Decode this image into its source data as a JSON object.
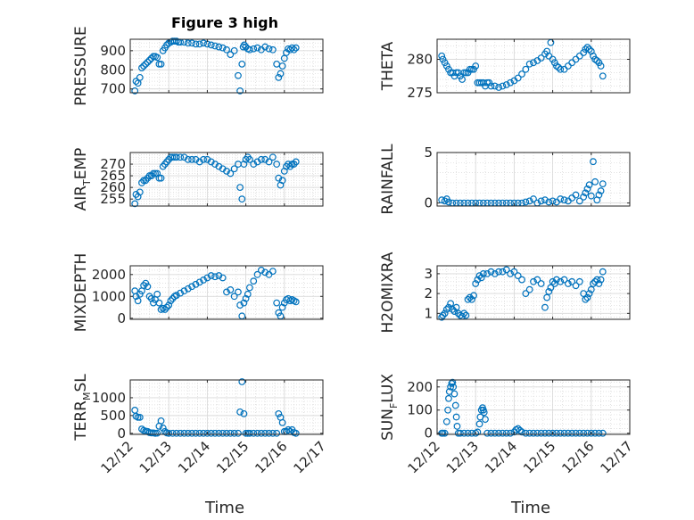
{
  "title": "Figure 3 high",
  "marker_color": "#0072BD",
  "x_tick_labels": [
    "12/12",
    "12/13",
    "12/14",
    "12/15",
    "12/16",
    "12/17"
  ],
  "x_label": "Time",
  "chart_data": [
    {
      "type": "scatter",
      "ylabel_base": "PRESSURE",
      "ylabel_sub": "",
      "ylabel_tail": "",
      "xlim": [
        0,
        5
      ],
      "ylim": [
        680,
        960
      ],
      "yticks": [
        700,
        800,
        900
      ],
      "x": [
        0.12,
        0.15,
        0.2,
        0.25,
        0.3,
        0.35,
        0.4,
        0.45,
        0.5,
        0.55,
        0.6,
        0.65,
        0.7,
        0.75,
        0.8,
        0.85,
        0.9,
        0.95,
        1.0,
        1.05,
        1.1,
        1.15,
        1.2,
        1.25,
        1.3,
        1.4,
        1.5,
        1.6,
        1.7,
        1.8,
        1.9,
        2.0,
        2.1,
        2.2,
        2.3,
        2.4,
        2.5,
        2.6,
        2.7,
        2.8,
        2.85,
        2.9,
        2.93,
        2.96,
        3.0,
        3.05,
        3.1,
        3.2,
        3.3,
        3.4,
        3.5,
        3.6,
        3.7,
        3.8,
        3.85,
        3.9,
        3.95,
        4.0,
        4.05,
        4.1,
        4.15,
        4.2,
        4.25,
        4.3
      ],
      "y": [
        690,
        740,
        730,
        760,
        810,
        820,
        830,
        840,
        850,
        860,
        870,
        870,
        865,
        830,
        830,
        900,
        915,
        930,
        940,
        945,
        950,
        950,
        950,
        945,
        945,
        945,
        940,
        940,
        935,
        935,
        940,
        935,
        930,
        925,
        920,
        915,
        905,
        880,
        900,
        770,
        690,
        830,
        920,
        930,
        920,
        910,
        905,
        910,
        915,
        905,
        920,
        910,
        905,
        830,
        760,
        780,
        820,
        860,
        890,
        910,
        905,
        915,
        905,
        915
      ]
    },
    {
      "type": "scatter",
      "ylabel_base": "THETA",
      "ylabel_sub": "",
      "ylabel_tail": "",
      "xlim": [
        0,
        5
      ],
      "ylim": [
        275,
        283
      ],
      "yticks": [
        275,
        280
      ],
      "x": [
        0.12,
        0.15,
        0.2,
        0.25,
        0.3,
        0.35,
        0.4,
        0.45,
        0.5,
        0.55,
        0.6,
        0.65,
        0.7,
        0.75,
        0.8,
        0.85,
        0.9,
        0.95,
        1.0,
        1.05,
        1.1,
        1.15,
        1.2,
        1.25,
        1.3,
        1.35,
        1.4,
        1.5,
        1.6,
        1.7,
        1.8,
        1.9,
        2.0,
        2.1,
        2.2,
        2.3,
        2.4,
        2.5,
        2.6,
        2.7,
        2.8,
        2.85,
        2.9,
        2.95,
        3.0,
        3.05,
        3.1,
        3.15,
        3.2,
        3.3,
        3.4,
        3.5,
        3.6,
        3.7,
        3.8,
        3.85,
        3.9,
        3.95,
        4.0,
        4.05,
        4.1,
        4.15,
        4.2,
        4.25,
        4.3
      ],
      "y": [
        280.5,
        280,
        279.5,
        279,
        278.5,
        278,
        278,
        277.5,
        278,
        278,
        277.5,
        277,
        278,
        278,
        278,
        278.5,
        278.5,
        278.5,
        279,
        276.5,
        276.5,
        276.5,
        276.5,
        276,
        276.5,
        276.5,
        276,
        276,
        275.8,
        276,
        276.2,
        276.5,
        276.8,
        277.2,
        277.8,
        278.5,
        279.3,
        279.5,
        279.8,
        280.2,
        280.8,
        281.2,
        280.5,
        282.5,
        280,
        279.5,
        279,
        278.8,
        278.5,
        278.5,
        279,
        279.5,
        280,
        280.5,
        281,
        281.5,
        281.8,
        281.5,
        281.2,
        280.5,
        280,
        279.8,
        279.5,
        279,
        277.5
      ]
    },
    {
      "type": "scatter",
      "ylabel_base": "AIR",
      "ylabel_sub": "T",
      "ylabel_tail": "EMP",
      "xlim": [
        0,
        5
      ],
      "ylim": [
        252,
        275
      ],
      "yticks": [
        255,
        260,
        265,
        270
      ],
      "x": [
        0.12,
        0.15,
        0.2,
        0.25,
        0.3,
        0.35,
        0.4,
        0.45,
        0.5,
        0.55,
        0.6,
        0.65,
        0.7,
        0.75,
        0.8,
        0.85,
        0.9,
        0.95,
        1.0,
        1.05,
        1.1,
        1.15,
        1.2,
        1.3,
        1.4,
        1.5,
        1.6,
        1.7,
        1.8,
        1.9,
        2.0,
        2.1,
        2.2,
        2.3,
        2.4,
        2.5,
        2.6,
        2.7,
        2.8,
        2.85,
        2.9,
        2.95,
        3.0,
        3.05,
        3.1,
        3.2,
        3.3,
        3.4,
        3.5,
        3.6,
        3.7,
        3.8,
        3.85,
        3.9,
        3.95,
        4.0,
        4.05,
        4.1,
        4.15,
        4.2,
        4.25,
        4.3
      ],
      "y": [
        253,
        257,
        256,
        258,
        262,
        263,
        263,
        264,
        265,
        265,
        266,
        266,
        266,
        264,
        264,
        269,
        270,
        271,
        272,
        273,
        273,
        273,
        273,
        273,
        273,
        272,
        272,
        272,
        271,
        272,
        272,
        271,
        270,
        269,
        268,
        267,
        266,
        268,
        270,
        260,
        255,
        270,
        272,
        273,
        272,
        270,
        271,
        272,
        272,
        271,
        273,
        270,
        264,
        261,
        263,
        267,
        269,
        270,
        269,
        270,
        270,
        271
      ]
    },
    {
      "type": "scatter",
      "ylabel_base": "RAINFALL",
      "ylabel_sub": "",
      "ylabel_tail": "",
      "xlim": [
        0,
        5
      ],
      "ylim": [
        -0.3,
        5
      ],
      "yticks": [
        0,
        5
      ],
      "x": [
        0.12,
        0.2,
        0.25,
        0.3,
        0.4,
        0.5,
        0.6,
        0.7,
        0.8,
        0.9,
        1.0,
        1.1,
        1.2,
        1.3,
        1.4,
        1.5,
        1.6,
        1.7,
        1.8,
        1.9,
        2.0,
        2.1,
        2.2,
        2.3,
        2.4,
        2.5,
        2.6,
        2.7,
        2.8,
        2.9,
        3.0,
        3.1,
        3.2,
        3.3,
        3.4,
        3.5,
        3.6,
        3.7,
        3.8,
        3.85,
        3.9,
        3.95,
        4.0,
        4.05,
        4.1,
        4.15,
        4.2,
        4.25,
        4.3
      ],
      "y": [
        0.3,
        0.2,
        0.4,
        0.1,
        0,
        0,
        0,
        0,
        0,
        0,
        0,
        0,
        0,
        0,
        0,
        0,
        0,
        0,
        0,
        0,
        0,
        0,
        0,
        0.1,
        0.2,
        0.4,
        0,
        0.2,
        0.3,
        0.1,
        0.2,
        0.1,
        0.4,
        0.3,
        0.2,
        0.5,
        0.8,
        0.2,
        0.6,
        1.0,
        1.4,
        1.8,
        0.7,
        4.1,
        2.1,
        0.3,
        0.8,
        1.2,
        1.9
      ]
    },
    {
      "type": "scatter",
      "ylabel_base": "MIXDEPTH",
      "ylabel_sub": "",
      "ylabel_tail": "",
      "xlim": [
        0,
        5
      ],
      "ylim": [
        -50,
        2400
      ],
      "yticks": [
        0,
        1000,
        2000
      ],
      "x": [
        0.12,
        0.15,
        0.2,
        0.25,
        0.3,
        0.35,
        0.4,
        0.45,
        0.5,
        0.55,
        0.6,
        0.65,
        0.7,
        0.75,
        0.8,
        0.85,
        0.9,
        0.95,
        1.0,
        1.05,
        1.1,
        1.15,
        1.2,
        1.3,
        1.4,
        1.5,
        1.6,
        1.7,
        1.8,
        1.9,
        2.0,
        2.1,
        2.2,
        2.3,
        2.4,
        2.5,
        2.6,
        2.7,
        2.8,
        2.85,
        2.9,
        2.95,
        3.0,
        3.05,
        3.1,
        3.2,
        3.3,
        3.4,
        3.5,
        3.6,
        3.7,
        3.8,
        3.85,
        3.9,
        3.95,
        4.0,
        4.05,
        4.1,
        4.15,
        4.2,
        4.25,
        4.3
      ],
      "y": [
        1250,
        1000,
        800,
        1100,
        1250,
        1500,
        1600,
        1450,
        1000,
        900,
        700,
        850,
        1100,
        700,
        400,
        450,
        400,
        500,
        600,
        800,
        900,
        1000,
        1050,
        1150,
        1250,
        1350,
        1450,
        1550,
        1650,
        1750,
        1850,
        1950,
        1900,
        1950,
        1850,
        1200,
        1300,
        1000,
        1200,
        600,
        100,
        700,
        900,
        1100,
        1400,
        1700,
        2000,
        2200,
        2100,
        2000,
        2150,
        700,
        250,
        100,
        500,
        700,
        850,
        900,
        800,
        850,
        800,
        750
      ]
    },
    {
      "type": "scatter",
      "ylabel_base": "H2OMIXRA",
      "ylabel_sub": "",
      "ylabel_tail": "",
      "xlim": [
        0,
        5
      ],
      "ylim": [
        0.7,
        3.4
      ],
      "yticks": [
        1,
        2,
        3
      ],
      "x": [
        0.12,
        0.15,
        0.2,
        0.25,
        0.3,
        0.35,
        0.4,
        0.45,
        0.5,
        0.55,
        0.6,
        0.65,
        0.7,
        0.75,
        0.8,
        0.85,
        0.9,
        0.95,
        1.0,
        1.05,
        1.1,
        1.15,
        1.2,
        1.3,
        1.4,
        1.5,
        1.6,
        1.7,
        1.8,
        1.9,
        2.0,
        2.1,
        2.2,
        2.3,
        2.4,
        2.5,
        2.6,
        2.7,
        2.8,
        2.85,
        2.9,
        2.95,
        3.0,
        3.05,
        3.1,
        3.2,
        3.3,
        3.4,
        3.5,
        3.6,
        3.7,
        3.8,
        3.85,
        3.9,
        3.95,
        4.0,
        4.05,
        4.1,
        4.15,
        4.2,
        4.25,
        4.3
      ],
      "y": [
        0.8,
        0.9,
        1.0,
        1.2,
        1.3,
        1.5,
        1.2,
        1.1,
        1.3,
        1.0,
        0.9,
        0.85,
        1.0,
        0.9,
        1.7,
        1.8,
        1.7,
        1.9,
        2.5,
        2.7,
        2.9,
        2.8,
        3.0,
        3.0,
        3.1,
        3.0,
        3.1,
        3.1,
        3.2,
        3.0,
        3.1,
        2.9,
        2.7,
        2.0,
        2.2,
        2.6,
        2.7,
        2.5,
        1.3,
        1.8,
        2.1,
        2.3,
        2.6,
        2.5,
        2.7,
        2.6,
        2.7,
        2.5,
        2.6,
        2.4,
        2.6,
        2.0,
        1.7,
        1.8,
        2.0,
        2.2,
        2.5,
        2.6,
        2.7,
        2.5,
        2.7,
        3.1
      ]
    },
    {
      "type": "scatter",
      "ylabel_base": "TERR",
      "ylabel_sub": "M",
      "ylabel_tail": "SL",
      "xlim": [
        0,
        5
      ],
      "ylim": [
        -30,
        1500
      ],
      "yticks": [
        0,
        500,
        1000
      ],
      "x": [
        0.12,
        0.15,
        0.2,
        0.25,
        0.3,
        0.35,
        0.4,
        0.45,
        0.5,
        0.55,
        0.6,
        0.65,
        0.7,
        0.75,
        0.8,
        0.85,
        0.9,
        0.95,
        1.0,
        1.1,
        1.2,
        1.3,
        1.4,
        1.5,
        1.6,
        1.7,
        1.8,
        1.9,
        2.0,
        2.1,
        2.2,
        2.3,
        2.4,
        2.5,
        2.6,
        2.7,
        2.8,
        2.85,
        2.9,
        2.95,
        3.0,
        3.05,
        3.1,
        3.2,
        3.3,
        3.4,
        3.5,
        3.6,
        3.7,
        3.8,
        3.85,
        3.9,
        3.95,
        4.0,
        4.05,
        4.1,
        4.15,
        4.2,
        4.25,
        4.3
      ],
      "y": [
        650,
        480,
        450,
        450,
        120,
        80,
        60,
        50,
        20,
        10,
        10,
        0,
        5,
        200,
        350,
        150,
        50,
        10,
        0,
        0,
        0,
        0,
        0,
        0,
        0,
        0,
        0,
        0,
        0,
        0,
        0,
        0,
        0,
        0,
        0,
        0,
        0,
        600,
        1450,
        550,
        0,
        0,
        0,
        0,
        0,
        0,
        0,
        0,
        0,
        0,
        550,
        450,
        300,
        50,
        50,
        100,
        50,
        100,
        20,
        0
      ]
    },
    {
      "type": "scatter",
      "ylabel_base": "SUN",
      "ylabel_sub": "F",
      "ylabel_tail": "LUX",
      "xlim": [
        0,
        5
      ],
      "ylim": [
        -5,
        230
      ],
      "yticks": [
        0,
        100,
        200
      ],
      "x": [
        0.12,
        0.15,
        0.2,
        0.25,
        0.28,
        0.3,
        0.32,
        0.35,
        0.38,
        0.4,
        0.42,
        0.45,
        0.48,
        0.5,
        0.52,
        0.55,
        0.6,
        0.7,
        0.8,
        0.9,
        1.0,
        1.05,
        1.1,
        1.12,
        1.15,
        1.18,
        1.2,
        1.22,
        1.25,
        1.3,
        1.4,
        1.5,
        1.6,
        1.7,
        1.8,
        1.9,
        2.0,
        2.05,
        2.1,
        2.15,
        2.2,
        2.3,
        2.4,
        2.5,
        2.6,
        2.7,
        2.8,
        2.9,
        3.0,
        3.1,
        3.2,
        3.3,
        3.4,
        3.5,
        3.6,
        3.7,
        3.8,
        3.9,
        4.0,
        4.1,
        4.2,
        4.3
      ],
      "y": [
        0,
        0,
        0,
        50,
        100,
        150,
        180,
        200,
        215,
        220,
        200,
        170,
        120,
        70,
        30,
        0,
        0,
        0,
        0,
        0,
        0,
        5,
        40,
        70,
        100,
        110,
        100,
        90,
        60,
        0,
        0,
        0,
        0,
        0,
        0,
        0,
        5,
        15,
        20,
        12,
        5,
        0,
        0,
        0,
        0,
        0,
        0,
        0,
        0,
        0,
        0,
        0,
        0,
        0,
        0,
        0,
        0,
        0,
        0,
        0,
        0,
        0
      ]
    }
  ]
}
